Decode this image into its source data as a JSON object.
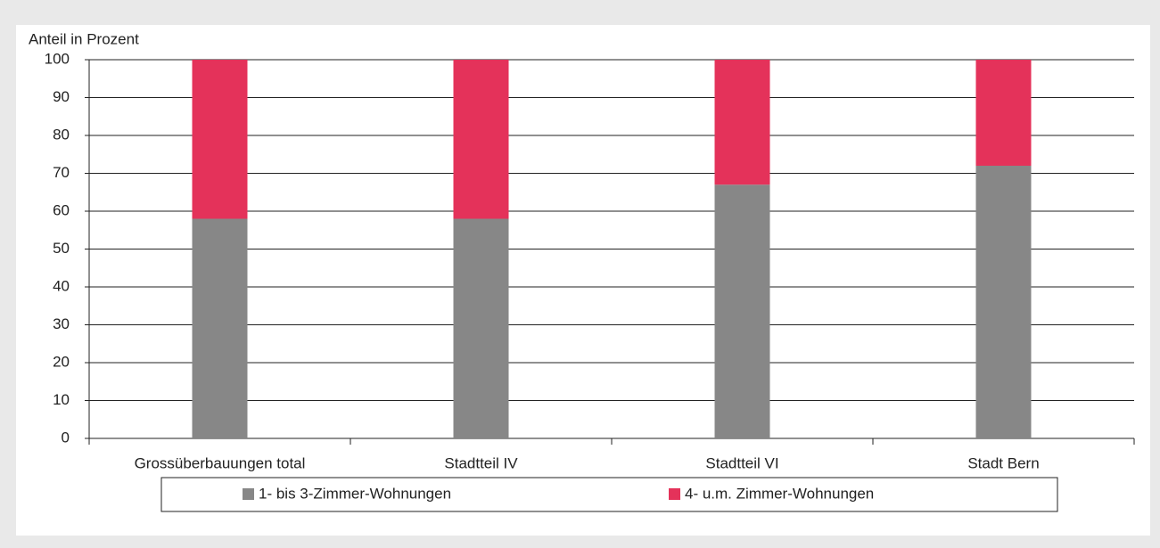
{
  "chart_data": {
    "type": "stacked_bar",
    "y_label": "Anteil in Prozent",
    "categories": [
      "Grossüberbauungen total",
      "Stadtteil IV",
      "Stadtteil VI",
      "Stadt Bern"
    ],
    "series": [
      {
        "name": "1- bis 3-Zimmer-Wohnungen",
        "color": "#878787",
        "values": [
          58,
          58,
          67,
          72
        ]
      },
      {
        "name": "4- u.m. Zimmer-Wohnungen",
        "color": "#e4325a",
        "values": [
          42,
          42,
          33,
          28
        ]
      }
    ],
    "ylim": [
      0,
      100
    ],
    "yticks": [
      0,
      10,
      20,
      30,
      40,
      50,
      60,
      70,
      80,
      90,
      100
    ],
    "grid": true
  }
}
